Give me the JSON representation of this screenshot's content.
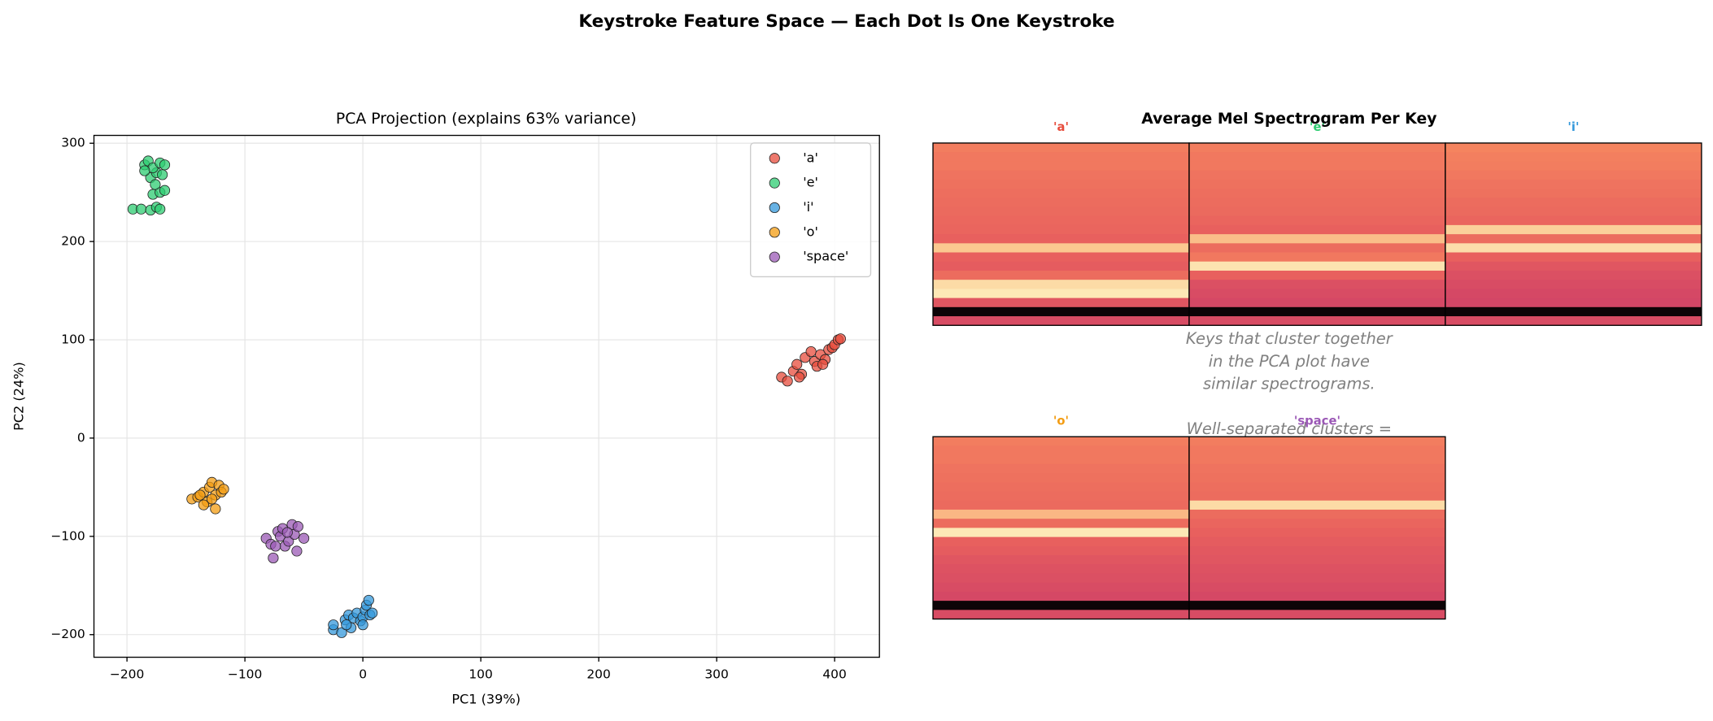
{
  "chart_data": [
    {
      "type": "scatter",
      "suptitle": "Keystroke Feature Space — Each Dot Is One Keystroke",
      "title": "PCA Projection (explains 63% variance)",
      "x_label": "PC1 (39%)",
      "y_label": "PC2 (24%)",
      "xlim": [
        -228,
        438
      ],
      "ylim": [
        -223,
        308
      ],
      "xticks": [
        {
          "value": -200,
          "label": "−200"
        },
        {
          "value": -100,
          "label": "−100"
        },
        0,
        100,
        200,
        300,
        400
      ],
      "yticks": [
        {
          "value": -200,
          "label": "−200"
        },
        {
          "value": -100,
          "label": "−100"
        },
        0,
        100,
        200,
        300
      ],
      "grid": true,
      "legend": "upper right",
      "series": [
        {
          "name": "'a'",
          "color": "#e74c3c",
          "x": [
            355,
            360,
            365,
            368,
            372,
            375,
            380,
            383,
            385,
            388,
            392,
            395,
            398,
            400,
            403,
            405,
            370,
            390
          ],
          "values": [
            62,
            58,
            68,
            75,
            65,
            82,
            88,
            78,
            73,
            85,
            80,
            90,
            92,
            95,
            100,
            101,
            62,
            75
          ]
        },
        {
          "name": "'e'",
          "color": "#2ecc71",
          "x": [
            -195,
            -188,
            -180,
            -175,
            -172,
            -178,
            -172,
            -168,
            -180,
            -175,
            -170,
            -185,
            -182,
            -178,
            -172,
            -168,
            -185,
            -176
          ],
          "values": [
            233,
            233,
            232,
            235,
            233,
            248,
            250,
            252,
            265,
            270,
            268,
            278,
            282,
            275,
            280,
            278,
            272,
            258
          ]
        },
        {
          "name": "'i'",
          "color": "#3498db",
          "x": [
            -25,
            -25,
            -18,
            -15,
            -12,
            -10,
            -8,
            -5,
            -2,
            0,
            2,
            3,
            5,
            6,
            8,
            -14,
            0
          ],
          "values": [
            -195,
            -190,
            -198,
            -185,
            -180,
            -193,
            -183,
            -178,
            -186,
            -182,
            -175,
            -170,
            -165,
            -180,
            -178,
            -190,
            -190
          ]
        },
        {
          "name": "'o'",
          "color": "#f39c12",
          "x": [
            -145,
            -140,
            -135,
            -132,
            -130,
            -128,
            -125,
            -125,
            -122,
            -120,
            -118,
            -135,
            -128,
            -138
          ],
          "values": [
            -62,
            -60,
            -55,
            -65,
            -50,
            -45,
            -72,
            -58,
            -48,
            -55,
            -52,
            -68,
            -62,
            -58
          ]
        },
        {
          "name": "'space'",
          "color": "#9b59b6",
          "x": [
            -82,
            -78,
            -76,
            -72,
            -70,
            -68,
            -66,
            -63,
            -60,
            -58,
            -56,
            -55,
            -50,
            -74,
            -64
          ],
          "values": [
            -102,
            -108,
            -122,
            -95,
            -100,
            -92,
            -110,
            -105,
            -88,
            -98,
            -115,
            -90,
            -102,
            -110,
            -96
          ]
        }
      ]
    },
    {
      "type": "heatmap",
      "title": "Average Mel Spectrogram Per Key",
      "annotation": [
        "Keys that cluster together",
        "in the PCA plot have",
        "similar spectrograms.",
        "Well-separated clusters ="
      ],
      "series": [
        {
          "name": "'a'",
          "color": "#e74c3c",
          "values": [
            0.62,
            0.6,
            0.6,
            0.58,
            0.57,
            0.56,
            0.55,
            0.54,
            0.53,
            0.52,
            0.5,
            0.85,
            0.5,
            0.48,
            0.55,
            0.92,
            0.97,
            0.45,
            0.02,
            0.4
          ]
        },
        {
          "name": "'e'",
          "color": "#2ecc71",
          "values": [
            0.62,
            0.6,
            0.6,
            0.58,
            0.57,
            0.56,
            0.55,
            0.54,
            0.52,
            0.5,
            0.82,
            0.55,
            0.6,
            0.95,
            0.5,
            0.42,
            0.4,
            0.38,
            0.02,
            0.4
          ]
        },
        {
          "name": "'i'",
          "color": "#3498db",
          "values": [
            0.65,
            0.63,
            0.62,
            0.6,
            0.58,
            0.57,
            0.55,
            0.54,
            0.52,
            0.88,
            0.55,
            0.93,
            0.5,
            0.45,
            0.42,
            0.4,
            0.38,
            0.37,
            0.02,
            0.4
          ]
        },
        {
          "name": "'o'",
          "color": "#f39c12",
          "values": [
            0.62,
            0.6,
            0.6,
            0.58,
            0.57,
            0.56,
            0.55,
            0.54,
            0.8,
            0.55,
            0.97,
            0.5,
            0.48,
            0.45,
            0.43,
            0.42,
            0.4,
            0.38,
            0.02,
            0.4
          ]
        },
        {
          "name": "'space'",
          "color": "#9b59b6",
          "values": [
            0.62,
            0.6,
            0.6,
            0.58,
            0.57,
            0.56,
            0.55,
            0.92,
            0.55,
            0.52,
            0.5,
            0.48,
            0.46,
            0.45,
            0.43,
            0.42,
            0.4,
            0.38,
            0.02,
            0.4
          ]
        }
      ]
    }
  ]
}
